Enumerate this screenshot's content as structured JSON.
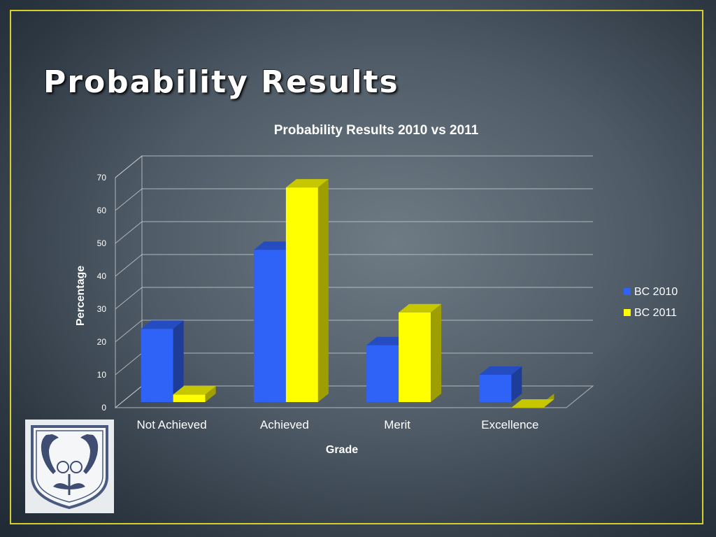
{
  "slide": {
    "title": "Probability Results",
    "frame_color": "#d4cf2a"
  },
  "crest": {
    "icon": "school-crest-icon"
  },
  "chart_data": {
    "type": "bar",
    "title": "Probability Results 2010 vs 2011",
    "xlabel": "Grade",
    "ylabel": "Percentage",
    "categories": [
      "Not Achieved",
      "Achieved",
      "Merit",
      "Excellence"
    ],
    "series": [
      {
        "name": "BC 2010",
        "color": "#2f62f7",
        "values": [
          24,
          48,
          19,
          10
        ]
      },
      {
        "name": "BC 2011",
        "color": "#ffff00",
        "values": [
          4,
          67,
          29,
          0
        ]
      }
    ],
    "ylim": [
      0,
      70
    ],
    "yticks": [
      0,
      10,
      20,
      30,
      40,
      50,
      60,
      70
    ],
    "grid": true,
    "legend": "right",
    "style": "3d-clustered-column"
  }
}
